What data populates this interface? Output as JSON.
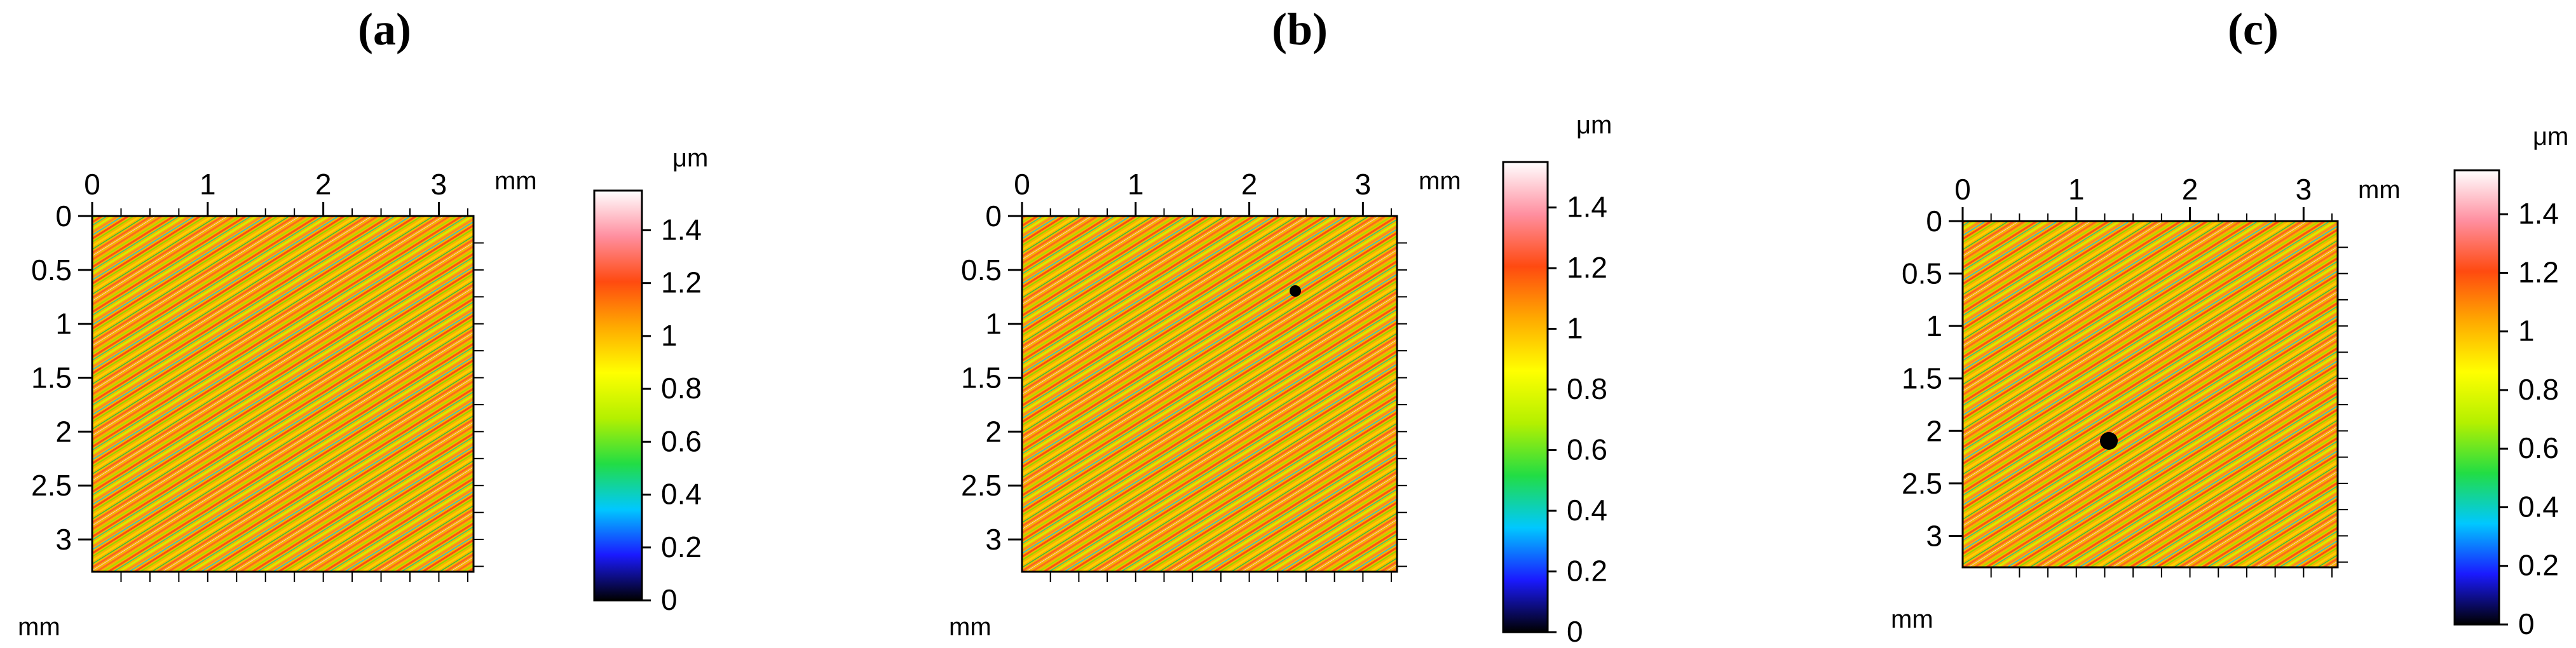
{
  "figure": {
    "panels": [
      {
        "id": "a",
        "title": "(a)",
        "x_ticks": [
          "0",
          "1",
          "2",
          "3"
        ],
        "x_unit": "mm",
        "y_ticks": [
          "0",
          "0.5",
          "1",
          "1.5",
          "2",
          "2.5",
          "3"
        ],
        "y_unit": "mm",
        "colorbar_unit": "μm",
        "colorbar_ticks": [
          "0",
          "0.2",
          "0.4",
          "0.6",
          "0.8",
          "1",
          "1.2",
          "1.4"
        ],
        "defect_marker": "none"
      },
      {
        "id": "b",
        "title": "(b)",
        "x_ticks": [
          "0",
          "1",
          "2",
          "3"
        ],
        "x_unit": "mm",
        "y_ticks": [
          "0",
          "0.5",
          "1",
          "1.5",
          "2",
          "2.5",
          "3"
        ],
        "y_unit": "mm",
        "colorbar_unit": "μm",
        "colorbar_ticks": [
          "0",
          "0.2",
          "0.4",
          "0.6",
          "0.8",
          "1",
          "1.2",
          "1.4"
        ],
        "defect_marker": "small black dot"
      },
      {
        "id": "c",
        "title": "(c)",
        "x_ticks": [
          "0",
          "1",
          "2",
          "3"
        ],
        "x_unit": "mm",
        "y_ticks": [
          "0",
          "0.5",
          "1",
          "1.5",
          "2",
          "2.5",
          "3"
        ],
        "y_unit": "mm",
        "colorbar_unit": "μm",
        "colorbar_ticks": [
          "0",
          "0.2",
          "0.4",
          "0.6",
          "0.8",
          "1",
          "1.2",
          "1.4"
        ],
        "defect_marker": "large black dot"
      }
    ],
    "colormap": [
      "#000000",
      "#1a1aff",
      "#00c8ff",
      "#22dd44",
      "#b4f000",
      "#ffff00",
      "#ffaa00",
      "#ff4a10",
      "#ff8fa0",
      "#ffffff"
    ]
  }
}
